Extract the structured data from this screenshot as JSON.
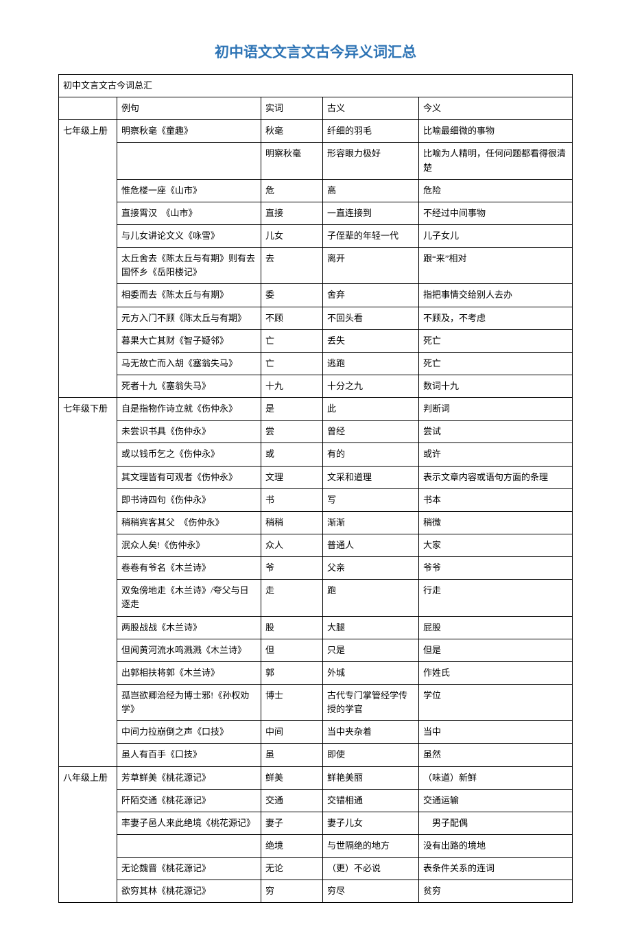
{
  "title": "初中语文文言文古今异义词汇总",
  "title_color": "#2e74b5",
  "table_caption": "初中文言文古今词总汇",
  "header": {
    "grade": "",
    "example": "例句",
    "word": "实词",
    "ancient": "古义",
    "modern": "今义"
  },
  "rows": [
    {
      "grade": "七年级上册",
      "example": "明察秋毫《童趣》",
      "word": "秋毫",
      "ancient": "纤细的羽毛",
      "modern": "比喻最细微的事物"
    },
    {
      "grade": "",
      "example": "",
      "word": "明察秋毫",
      "ancient": "形容眼力极好",
      "modern": "比喻为人精明，任何问题都看得很清楚"
    },
    {
      "grade": "",
      "example": "惟危楼一座《山市》",
      "word": "危",
      "ancient": "高",
      "modern": "危险"
    },
    {
      "grade": "",
      "example": "直接霄汉　《山市》",
      "word": "直接",
      "ancient": "一直连接到",
      "modern": "不经过中间事物"
    },
    {
      "grade": "",
      "example": "与儿女讲论文义《咏雪》",
      "word": "儿女",
      "ancient": "子侄辈的年轻一代",
      "modern": "儿子女儿"
    },
    {
      "grade": "",
      "example": "太丘舍去《陈太丘与有期》则有去国怀乡《岳阳楼记》",
      "word": "去",
      "ancient": "离开",
      "modern": "跟“来”相对"
    },
    {
      "grade": "",
      "example": "相委而去《陈太丘与有期》",
      "word": "委",
      "ancient": "舍弃",
      "modern": "指把事情交给别人去办"
    },
    {
      "grade": "",
      "example": "元方入门不顾《陈太丘与有期》",
      "word": "不顾",
      "ancient": "不回头看",
      "modern": "不顾及，不考虑"
    },
    {
      "grade": "",
      "example": "暮果大亡其财《智子疑邻》",
      "word": "亡",
      "ancient": "丢失",
      "modern": "死亡"
    },
    {
      "grade": "",
      "example": "马无故亡而入胡《塞翁失马》",
      "word": "亡",
      "ancient": "逃跑",
      "modern": "死亡"
    },
    {
      "grade": "",
      "example": "死者十九《塞翁失马》",
      "word": "十九",
      "ancient": "十分之九",
      "modern": "数词十九"
    },
    {
      "grade": "七年级下册",
      "example": "自是指物作诗立就《伤仲永》",
      "word": "是",
      "ancient": "此",
      "modern": "判断词"
    },
    {
      "grade": "",
      "example": "未尝识书具《伤仲永》",
      "word": "尝",
      "ancient": "曾经",
      "modern": "尝试"
    },
    {
      "grade": "",
      "example": "或以钱币乞之《伤仲永》",
      "word": "或",
      "ancient": "有的",
      "modern": "或许"
    },
    {
      "grade": "",
      "example": "其文理皆有可观者《伤仲永》",
      "word": "文理",
      "ancient": "文采和道理",
      "modern": "表示文章内容或语句方面的条理"
    },
    {
      "grade": "",
      "example": "即书诗四句《伤仲永》",
      "word": "书",
      "ancient": "写",
      "modern": "书本"
    },
    {
      "grade": "",
      "example": "稍稍宾客其父　《伤仲永》",
      "word": "稍稍",
      "ancient": "渐渐",
      "modern": "稍微"
    },
    {
      "grade": "",
      "example": "泯众人矣!《伤仲永》",
      "word": "众人",
      "ancient": "普通人",
      "modern": "大家"
    },
    {
      "grade": "",
      "example": "卷卷有爷名《木兰诗》",
      "word": "爷",
      "ancient": "父亲",
      "modern": "爷爷"
    },
    {
      "grade": "",
      "example": "双兔傍地走《木兰诗》/夸父与日逐走",
      "word": "走",
      "ancient": "跑",
      "modern": "行走"
    },
    {
      "grade": "",
      "example": "两股战战《木兰诗》",
      "word": "股",
      "ancient": "大腿",
      "modern": "屁股"
    },
    {
      "grade": "",
      "example": "但闻黄河流水鸣溅溅《木兰诗》",
      "word": "但",
      "ancient": "只是",
      "modern": "但是"
    },
    {
      "grade": "",
      "example": "出郭相扶将郭《木兰诗》",
      "word": "郭",
      "ancient": "外城",
      "modern": "作姓氏"
    },
    {
      "grade": "",
      "example": "孤岂欲卿治经为博士邪!《孙权劝学》",
      "word": "博士",
      "ancient": "古代专门掌管经学传授的学官",
      "modern": "学位"
    },
    {
      "grade": "",
      "example": "中间力拉崩倒之声《口技》",
      "word": "中间",
      "ancient": "当中夹杂着",
      "modern": "当中"
    },
    {
      "grade": "",
      "example": "虽人有百手《口技》",
      "word": "虽",
      "ancient": "即使",
      "modern": "虽然"
    },
    {
      "grade": "八年级上册",
      "example": "芳草鲜美《桃花源记》",
      "word": "鲜美",
      "ancient": "鲜艳美丽",
      "modern": "（味道）新鲜"
    },
    {
      "grade": "",
      "example": "阡陌交通《桃花源记》",
      "word": "交通",
      "ancient": "交错相通",
      "modern": "交通运输"
    },
    {
      "grade": "",
      "example": "率妻子邑人来此绝境《桃花源记》",
      "word": "妻子",
      "ancient": "妻子儿女",
      "modern": "　男子配偶"
    },
    {
      "grade": "",
      "example": "",
      "word": "绝境",
      "ancient": "与世隔绝的地方",
      "modern": "没有出路的境地"
    },
    {
      "grade": "",
      "example": "无论魏晋《桃花源记》",
      "word": "无论",
      "ancient": "（更）不必说",
      "modern": "表条件关系的连词"
    },
    {
      "grade": "",
      "example": "欲穷其林《桃花源记》",
      "word": "穷",
      "ancient": "穷尽",
      "modern": "贫穷"
    }
  ],
  "grade_spans": [
    {
      "start": 0,
      "span": 11
    },
    {
      "start": 11,
      "span": 15
    },
    {
      "start": 26,
      "span": 6
    }
  ]
}
